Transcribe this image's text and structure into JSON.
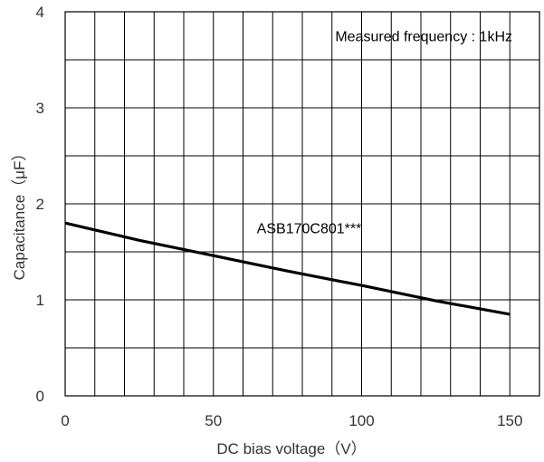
{
  "chart_data": {
    "type": "line",
    "title": "",
    "xlabel": "DC bias voltage（V）",
    "ylabel": "Capacitance（μF）",
    "xlim": [
      0,
      160
    ],
    "ylim": [
      0,
      4
    ],
    "x_ticks": [
      0,
      50,
      100,
      150
    ],
    "y_ticks": [
      0,
      1,
      2,
      3,
      4
    ],
    "x_grid_step": 10,
    "y_grid_step": 0.5,
    "grid": true,
    "legend": "none",
    "series": [
      {
        "name": "ASB170C801***",
        "color": "#000000",
        "x": [
          0,
          25,
          50,
          75,
          100,
          125,
          150
        ],
        "y": [
          1.8,
          1.62,
          1.46,
          1.3,
          1.15,
          0.99,
          0.85
        ]
      }
    ],
    "annotations": [
      {
        "text": "Measured frequency : 1kHz",
        "position": "top-right"
      }
    ]
  }
}
